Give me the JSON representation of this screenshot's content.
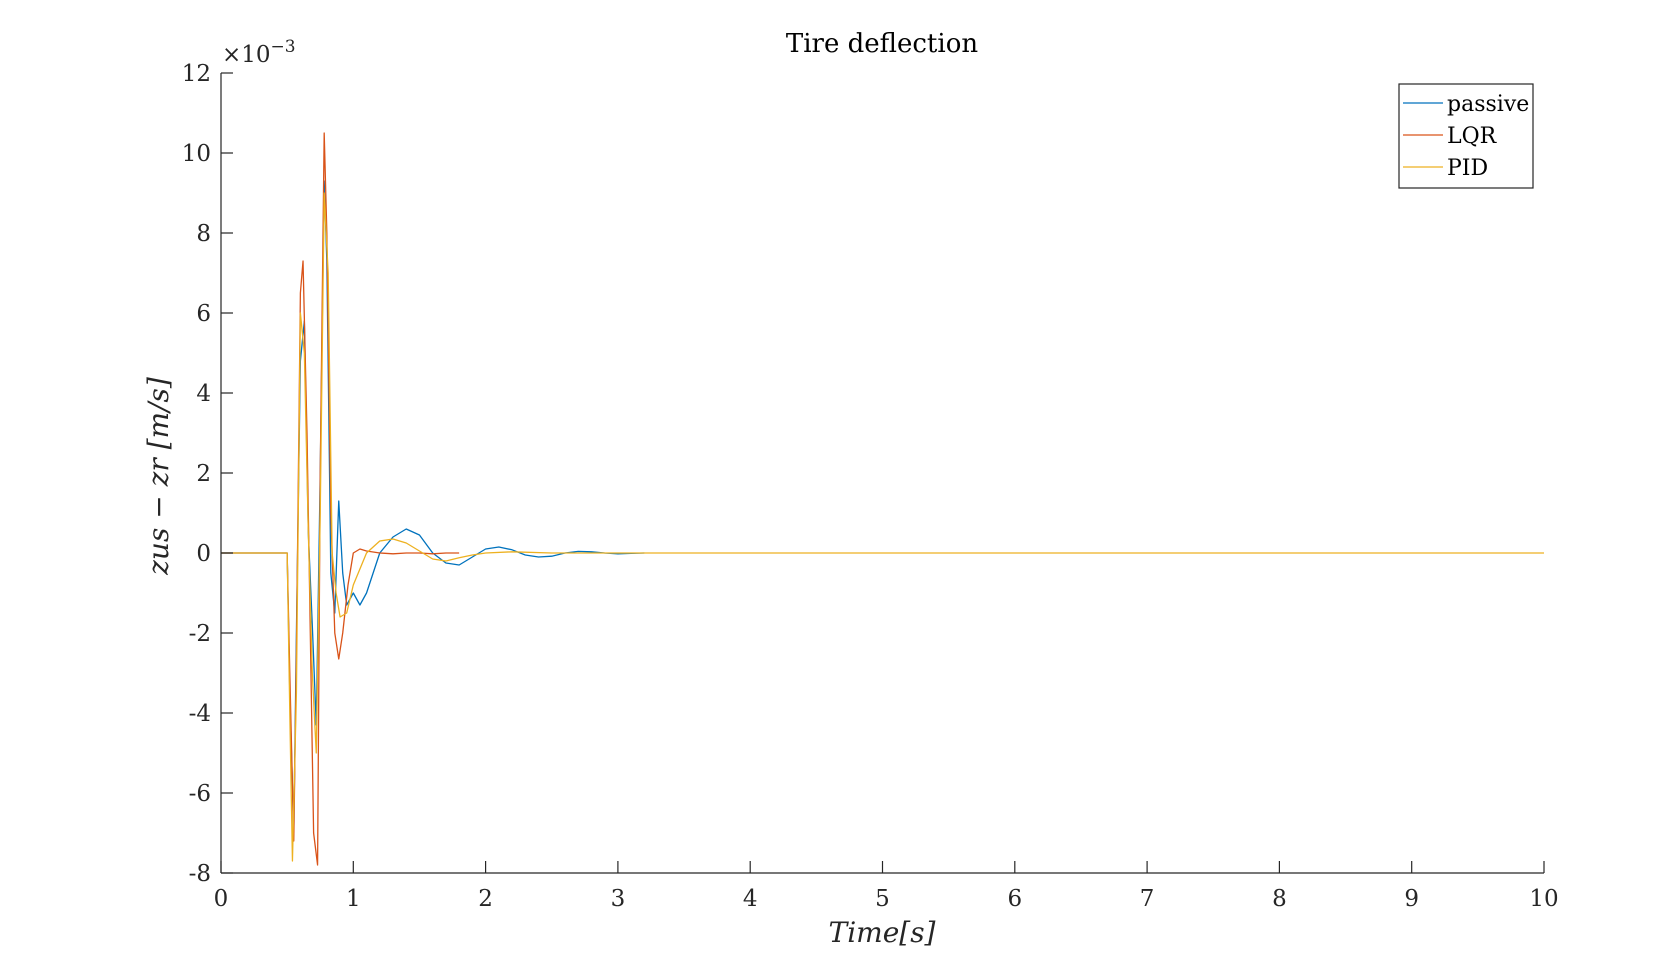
{
  "chart_data": {
    "type": "line",
    "title": "Tire deflection",
    "xlabel": "Time[s]",
    "ylabel": "zus − zr [m/s]",
    "y_exponent_label": "×10",
    "y_exponent_power": "−3",
    "xlim": [
      0,
      10
    ],
    "ylim": [
      -8,
      12
    ],
    "x_ticks": [
      0,
      1,
      2,
      3,
      4,
      5,
      6,
      7,
      8,
      9,
      10
    ],
    "y_ticks": [
      -8,
      -6,
      -4,
      -2,
      0,
      2,
      4,
      6,
      8,
      10,
      12
    ],
    "legend_position": "top-right",
    "grid": false,
    "series": [
      {
        "name": "passive",
        "color": "#0072BD",
        "x": [
          0,
          0.5,
          0.52,
          0.55,
          0.57,
          0.6,
          0.63,
          0.66,
          0.69,
          0.72,
          0.75,
          0.78,
          0.8,
          0.83,
          0.86,
          0.89,
          0.92,
          0.95,
          1.0,
          1.05,
          1.1,
          1.2,
          1.3,
          1.4,
          1.5,
          1.6,
          1.7,
          1.8,
          1.9,
          2.0,
          2.1,
          2.2,
          2.3,
          2.4,
          2.5,
          2.6,
          2.7,
          2.8,
          2.9,
          3.0,
          3.1,
          3.2
        ],
        "y": [
          0,
          0,
          -3.5,
          -7.0,
          -2.0,
          4.8,
          5.8,
          0.5,
          -1.8,
          -4.3,
          2.0,
          9.3,
          7.3,
          -0.5,
          -1.5,
          1.3,
          -0.5,
          -1.3,
          -1.0,
          -1.3,
          -1.0,
          0.0,
          0.4,
          0.6,
          0.45,
          0.0,
          -0.25,
          -0.3,
          -0.1,
          0.1,
          0.15,
          0.08,
          -0.05,
          -0.1,
          -0.08,
          0.0,
          0.04,
          0.03,
          0.0,
          -0.02,
          -0.01,
          0.0
        ]
      },
      {
        "name": "LQR",
        "color": "#D95319",
        "x": [
          0,
          0.5,
          0.52,
          0.55,
          0.57,
          0.6,
          0.62,
          0.65,
          0.68,
          0.7,
          0.73,
          0.75,
          0.78,
          0.8,
          0.83,
          0.86,
          0.89,
          0.92,
          0.96,
          1.0,
          1.05,
          1.1,
          1.2,
          1.3,
          1.4,
          1.5,
          1.6,
          1.7,
          1.8
        ],
        "y": [
          0,
          0,
          -3.0,
          -7.2,
          -2.5,
          6.5,
          7.3,
          3.0,
          -3.0,
          -7.0,
          -7.8,
          2.0,
          10.5,
          8.0,
          1.0,
          -2.0,
          -2.65,
          -2.0,
          -0.8,
          0.0,
          0.1,
          0.05,
          0.0,
          -0.02,
          0.0,
          0.0,
          -0.02,
          0.0,
          0.0
        ]
      },
      {
        "name": "PID",
        "color": "#EDB120",
        "x": [
          0,
          0.5,
          0.52,
          0.54,
          0.57,
          0.6,
          0.63,
          0.66,
          0.69,
          0.72,
          0.75,
          0.78,
          0.81,
          0.84,
          0.87,
          0.9,
          0.95,
          1.0,
          1.1,
          1.2,
          1.3,
          1.4,
          1.5,
          1.6,
          1.7,
          1.8,
          1.9,
          2.0,
          2.2,
          2.5,
          3.0,
          10
        ],
        "y": [
          0,
          0,
          -4.0,
          -7.7,
          -3.5,
          6.0,
          5.0,
          0.5,
          -3.0,
          -5.0,
          1.0,
          9.0,
          7.0,
          0.0,
          -1.0,
          -1.6,
          -1.5,
          -0.8,
          0.0,
          0.3,
          0.35,
          0.25,
          0.05,
          -0.15,
          -0.2,
          -0.12,
          -0.05,
          0.0,
          0.03,
          0.0,
          0.0,
          0.0
        ]
      }
    ]
  }
}
